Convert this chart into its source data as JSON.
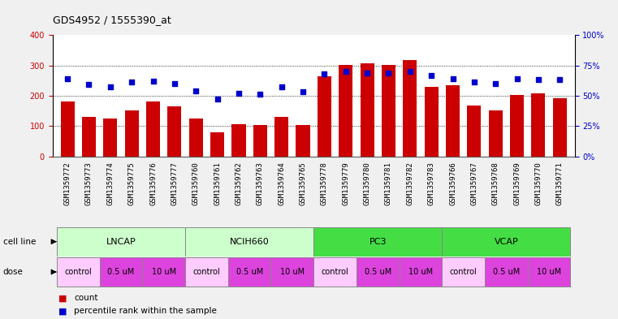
{
  "title": "GDS4952 / 1555390_at",
  "samples": [
    "GSM1359772",
    "GSM1359773",
    "GSM1359774",
    "GSM1359775",
    "GSM1359776",
    "GSM1359777",
    "GSM1359760",
    "GSM1359761",
    "GSM1359762",
    "GSM1359763",
    "GSM1359764",
    "GSM1359765",
    "GSM1359778",
    "GSM1359779",
    "GSM1359780",
    "GSM1359781",
    "GSM1359782",
    "GSM1359783",
    "GSM1359766",
    "GSM1359767",
    "GSM1359768",
    "GSM1359769",
    "GSM1359770",
    "GSM1359771"
  ],
  "bar_values": [
    182,
    130,
    126,
    152,
    182,
    165,
    126,
    78,
    105,
    103,
    130,
    103,
    265,
    302,
    308,
    302,
    318,
    230,
    235,
    167,
    152,
    202,
    207,
    193
  ],
  "dot_values": [
    64,
    59,
    57,
    61,
    62,
    60,
    54,
    47,
    52,
    51,
    57,
    53,
    68,
    70,
    69,
    69,
    70,
    67,
    64,
    61,
    60,
    64,
    63,
    63
  ],
  "cell_groups": [
    {
      "label": "LNCAP",
      "start": 0,
      "end": 6,
      "color": "#ccffcc"
    },
    {
      "label": "NCIH660",
      "start": 6,
      "end": 12,
      "color": "#ccffcc"
    },
    {
      "label": "PC3",
      "start": 12,
      "end": 18,
      "color": "#44dd44"
    },
    {
      "label": "VCAP",
      "start": 18,
      "end": 24,
      "color": "#44dd44"
    }
  ],
  "dose_groups": [
    {
      "label": "control",
      "start": 0,
      "end": 2,
      "color": "#ffccff"
    },
    {
      "label": "0.5 uM",
      "start": 2,
      "end": 4,
      "color": "#dd44dd"
    },
    {
      "label": "10 uM",
      "start": 4,
      "end": 6,
      "color": "#dd44dd"
    },
    {
      "label": "control",
      "start": 6,
      "end": 8,
      "color": "#ffccff"
    },
    {
      "label": "0.5 uM",
      "start": 8,
      "end": 10,
      "color": "#dd44dd"
    },
    {
      "label": "10 uM",
      "start": 10,
      "end": 12,
      "color": "#dd44dd"
    },
    {
      "label": "control",
      "start": 12,
      "end": 14,
      "color": "#ffccff"
    },
    {
      "label": "0.5 uM",
      "start": 14,
      "end": 16,
      "color": "#dd44dd"
    },
    {
      "label": "10 uM",
      "start": 16,
      "end": 18,
      "color": "#dd44dd"
    },
    {
      "label": "control",
      "start": 18,
      "end": 20,
      "color": "#ffccff"
    },
    {
      "label": "0.5 uM",
      "start": 20,
      "end": 22,
      "color": "#dd44dd"
    },
    {
      "label": "10 uM",
      "start": 22,
      "end": 24,
      "color": "#dd44dd"
    }
  ],
  "bar_color": "#cc0000",
  "dot_color": "#0000cc",
  "left_ylim": [
    0,
    400
  ],
  "left_yticks": [
    0,
    100,
    200,
    300,
    400
  ],
  "right_ylim": [
    0,
    100
  ],
  "right_yticks": [
    0,
    25,
    50,
    75,
    100
  ],
  "right_yticklabels": [
    "0%",
    "25%",
    "50%",
    "75%",
    "100%"
  ],
  "bg_color": "#f0f0f0",
  "plot_bg_color": "#ffffff",
  "xtick_bg_color": "#d8d8d8"
}
